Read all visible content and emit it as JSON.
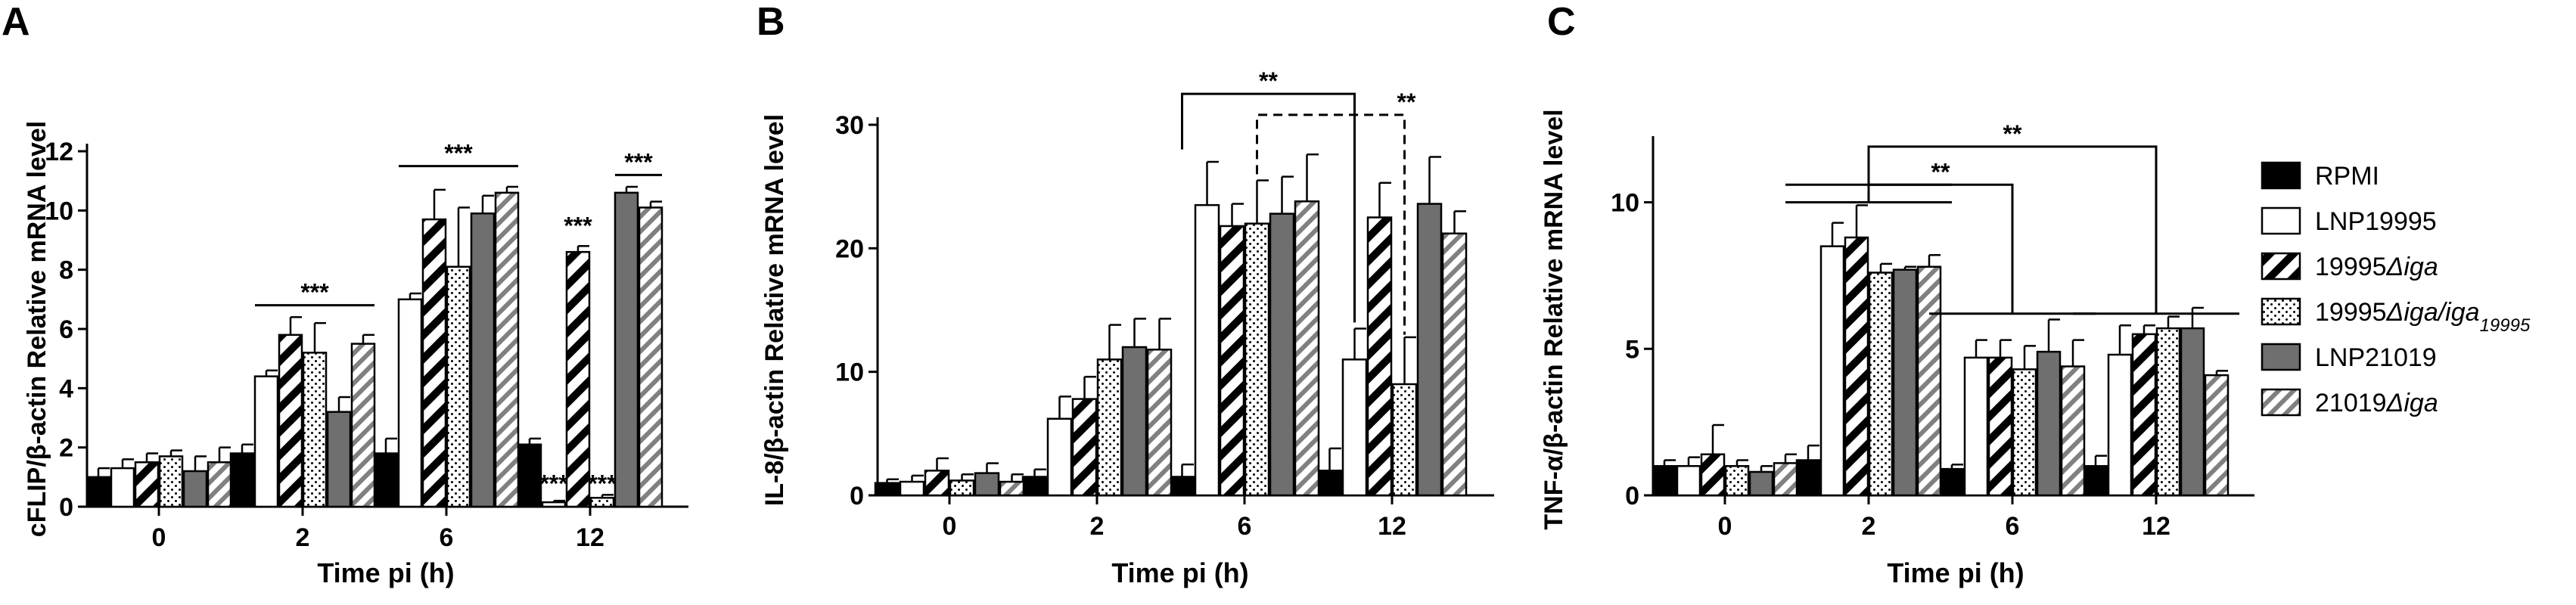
{
  "colors": {
    "RPMI": "#000000",
    "LNP19995": "#ffffff",
    "19995Δiga": "hatch-black",
    "19995Δiga/iga19995": "dots",
    "LNP21019": "#6f6f6f",
    "21019Δiga": "hatch-grey"
  },
  "legend": {
    "placement": "right",
    "items": [
      {
        "key": "RPMI",
        "parts": [
          {
            "t": "RPMI",
            "i": false
          }
        ]
      },
      {
        "key": "LNP19995",
        "parts": [
          {
            "t": "LNP19995",
            "i": false
          }
        ]
      },
      {
        "key": "19995Δiga",
        "parts": [
          {
            "t": "19995",
            "i": false
          },
          {
            "t": "Δiga",
            "i": true
          }
        ]
      },
      {
        "key": "19995Δiga/iga19995",
        "parts": [
          {
            "t": "19995",
            "i": false
          },
          {
            "t": "Δiga/iga",
            "i": true
          },
          {
            "t": "19995",
            "i": true,
            "sub": true
          }
        ]
      },
      {
        "key": "LNP21019",
        "parts": [
          {
            "t": "LNP21019",
            "i": false
          }
        ]
      },
      {
        "key": "21019Δiga",
        "parts": [
          {
            "t": "21019",
            "i": false
          },
          {
            "t": "Δiga",
            "i": true
          }
        ]
      }
    ]
  },
  "chart_data": [
    {
      "panel": "A",
      "type": "bar",
      "ylabel": "cFLIP/β-actin Relative mRNA level",
      "xlabel": "Time pi (h)",
      "categories": [
        "0",
        "2",
        "6",
        "12"
      ],
      "ylim": [
        0,
        12
      ],
      "yticks": [
        0,
        2,
        4,
        6,
        8,
        10,
        12
      ],
      "series": [
        {
          "name": "RPMI",
          "values": [
            1.0,
            1.8,
            1.8,
            2.1
          ],
          "errors": [
            0.3,
            0.3,
            0.5,
            0.2
          ]
        },
        {
          "name": "LNP19995",
          "values": [
            1.3,
            4.4,
            7.0,
            0.15
          ],
          "errors": [
            0.3,
            0.2,
            0.2,
            0.05
          ]
        },
        {
          "name": "19995Δiga",
          "values": [
            1.5,
            5.8,
            9.7,
            8.6
          ],
          "errors": [
            0.3,
            0.6,
            1.0,
            0.2
          ]
        },
        {
          "name": "19995Δiga/iga19995",
          "values": [
            1.7,
            5.2,
            8.1,
            0.3
          ],
          "errors": [
            0.2,
            1.0,
            2.0,
            0.1
          ]
        },
        {
          "name": "LNP21019",
          "values": [
            1.2,
            3.2,
            9.9,
            10.6
          ],
          "errors": [
            0.5,
            0.5,
            0.6,
            0.2
          ]
        },
        {
          "name": "21019Δiga",
          "values": [
            1.5,
            5.5,
            10.6,
            10.1
          ],
          "errors": [
            0.5,
            0.3,
            0.2,
            0.2
          ]
        }
      ],
      "annotations": [
        {
          "type": "line",
          "text": "***",
          "category": "2",
          "from_series": 1,
          "to_series": 5,
          "y": 6.8
        },
        {
          "type": "line",
          "text": "***",
          "category": "6",
          "from_series": 1,
          "to_series": 5,
          "y": 11.5
        },
        {
          "type": "line",
          "text": "***",
          "category": "12",
          "from_series": 4,
          "to_series": 5,
          "y": 11.2
        },
        {
          "type": "text",
          "text": "***",
          "category": "12",
          "series": 2,
          "y": 9.2
        },
        {
          "type": "text",
          "text": "***",
          "category": "12",
          "series": 1,
          "y": 0.5
        },
        {
          "type": "text",
          "text": "***",
          "category": "12",
          "series": 3,
          "y": 0.5
        }
      ]
    },
    {
      "panel": "B",
      "type": "bar",
      "ylabel": "IL-8/β-actin Relative mRNA level",
      "xlabel": "Time pi (h)",
      "categories": [
        "0",
        "2",
        "6",
        "12"
      ],
      "ylim": [
        0,
        30
      ],
      "yticks": [
        0,
        10,
        20,
        30
      ],
      "series": [
        {
          "name": "RPMI",
          "values": [
            1.0,
            1.5,
            1.5,
            2.0
          ],
          "errors": [
            0.3,
            0.6,
            1.0,
            1.8
          ]
        },
        {
          "name": "LNP19995",
          "values": [
            1.1,
            6.2,
            23.5,
            11.0
          ],
          "errors": [
            0.5,
            1.8,
            3.5,
            2.5
          ]
        },
        {
          "name": "19995Δiga",
          "values": [
            2.0,
            7.8,
            21.8,
            22.5
          ],
          "errors": [
            1.0,
            1.8,
            1.8,
            2.8
          ]
        },
        {
          "name": "19995Δiga/iga19995",
          "values": [
            1.2,
            11.0,
            22.0,
            9.0
          ],
          "errors": [
            0.5,
            2.8,
            3.5,
            3.8
          ]
        },
        {
          "name": "LNP21019",
          "values": [
            1.8,
            12.0,
            22.8,
            23.6
          ],
          "errors": [
            0.8,
            2.3,
            3.0,
            3.8
          ]
        },
        {
          "name": "21019Δiga",
          "values": [
            1.1,
            11.8,
            23.8,
            21.2
          ],
          "errors": [
            0.6,
            2.5,
            3.8,
            1.8
          ]
        }
      ],
      "annotations": [
        {
          "type": "bracket",
          "style": "solid",
          "text": "**",
          "from": {
            "category": "6",
            "series": 0
          },
          "to": {
            "category": "12",
            "series": 1
          },
          "y": 32.5,
          "ends": [
            28.0,
            14.0
          ]
        },
        {
          "type": "bracket",
          "style": "dashed",
          "text": "**",
          "from": {
            "category": "6",
            "series": 3
          },
          "to": {
            "category": "12",
            "series": 3
          },
          "y": 30.8,
          "ends": [
            26.0,
            13.0
          ]
        }
      ]
    },
    {
      "panel": "C",
      "type": "bar",
      "ylabel": "TNF-α/β-actin Relative mRNA level",
      "xlabel": "Time pi (h)",
      "categories": [
        "0",
        "2",
        "6",
        "12"
      ],
      "ylim": [
        0,
        12
      ],
      "yticks": [
        0,
        5,
        10
      ],
      "series": [
        {
          "name": "RPMI",
          "values": [
            1.0,
            1.2,
            0.9,
            1.0
          ],
          "errors": [
            0.2,
            0.5,
            0.15,
            0.35
          ]
        },
        {
          "name": "LNP19995",
          "values": [
            1.0,
            8.5,
            4.7,
            4.8
          ],
          "errors": [
            0.3,
            0.8,
            0.6,
            1.0
          ]
        },
        {
          "name": "19995Δiga",
          "values": [
            1.4,
            8.8,
            4.7,
            5.5
          ],
          "errors": [
            1.0,
            1.1,
            0.6,
            0.3
          ]
        },
        {
          "name": "19995Δiga/iga19995",
          "values": [
            1.0,
            7.6,
            4.3,
            5.7
          ],
          "errors": [
            0.2,
            0.3,
            0.8,
            0.4
          ]
        },
        {
          "name": "LNP21019",
          "values": [
            0.8,
            7.7,
            4.9,
            5.7
          ],
          "errors": [
            0.2,
            0.1,
            1.1,
            0.7
          ]
        },
        {
          "name": "21019Δiga",
          "values": [
            1.1,
            7.8,
            4.4,
            4.1
          ],
          "errors": [
            0.3,
            0.4,
            0.9,
            0.15
          ]
        }
      ],
      "annotations": [
        {
          "type": "groupbracket",
          "text": "**",
          "from": "2",
          "to": "6",
          "y": 10.6,
          "ends": [
            10.0,
            6.2
          ]
        },
        {
          "type": "groupbracket",
          "text": "**",
          "from": "2",
          "to": "12",
          "y": 11.9,
          "ends": [
            10.6,
            6.2
          ]
        }
      ]
    }
  ]
}
